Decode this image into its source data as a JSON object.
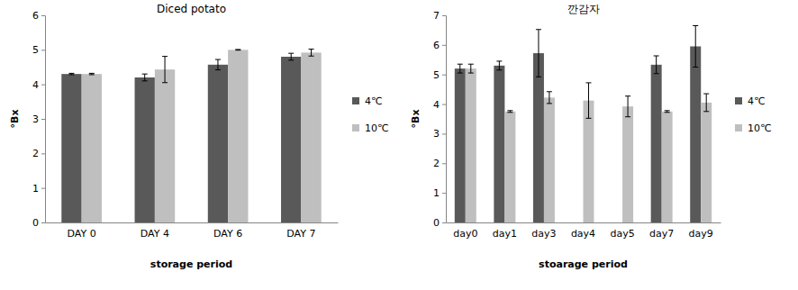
{
  "chart_data": [
    {
      "type": "bar",
      "title": "Diced potato",
      "x_label": "storage period",
      "y_label": "°Bx",
      "categories": [
        "DAY 0",
        "DAY 4",
        "DAY 6",
        "DAY 7"
      ],
      "series": [
        {
          "name": "4℃",
          "color": "#595959",
          "values": [
            4.3,
            4.2,
            4.57,
            4.8
          ],
          "errors": [
            0.02,
            0.1,
            0.15,
            0.1
          ]
        },
        {
          "name": "10℃",
          "color": "#bfbfbf",
          "values": [
            4.3,
            4.43,
            5.0,
            4.92
          ],
          "errors": [
            0.02,
            0.38,
            0.01,
            0.1
          ]
        }
      ],
      "ylim": [
        0,
        6
      ],
      "yticks": [
        0,
        1,
        2,
        3,
        4,
        5,
        6
      ],
      "grid": false,
      "legend": "right"
    },
    {
      "type": "bar",
      "title": "깐감자",
      "x_label": "stoarage period",
      "y_label": "°Bx",
      "categories": [
        "day0",
        "day1",
        "day3",
        "day4",
        "day5",
        "day7",
        "day9"
      ],
      "series": [
        {
          "name": "4℃",
          "color": "#595959",
          "values": [
            5.2,
            5.3,
            5.72,
            null,
            null,
            5.33,
            5.95
          ],
          "errors": [
            0.15,
            0.15,
            0.8,
            null,
            null,
            0.3,
            0.7
          ]
        },
        {
          "name": "10℃",
          "color": "#bfbfbf",
          "values": [
            5.2,
            3.75,
            4.22,
            4.12,
            3.92,
            3.75,
            4.05
          ],
          "errors": [
            0.15,
            0.03,
            0.2,
            0.6,
            0.35,
            0.03,
            0.3
          ]
        }
      ],
      "ylim": [
        0,
        7
      ],
      "yticks": [
        0,
        1,
        2,
        3,
        4,
        5,
        6,
        7
      ],
      "grid": false,
      "legend": "right"
    }
  ]
}
